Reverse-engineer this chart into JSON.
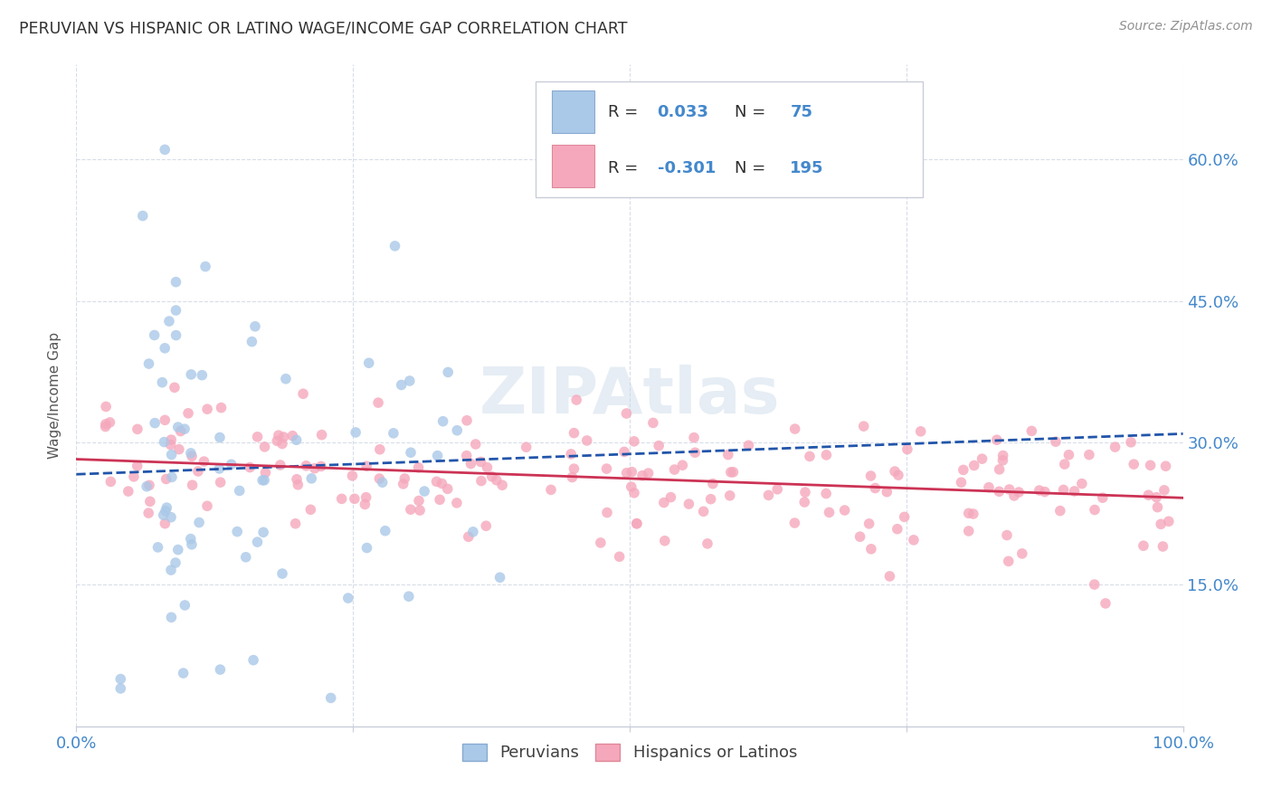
{
  "title": "PERUVIAN VS HISPANIC OR LATINO WAGE/INCOME GAP CORRELATION CHART",
  "source": "Source: ZipAtlas.com",
  "ylabel": "Wage/Income Gap",
  "ytick_labels": [
    "60.0%",
    "45.0%",
    "30.0%",
    "15.0%"
  ],
  "ytick_values": [
    0.6,
    0.45,
    0.3,
    0.15
  ],
  "xlim": [
    0.0,
    1.0
  ],
  "ylim": [
    0.0,
    0.7
  ],
  "watermark": "ZIPAtlas",
  "legend_blue_R": "0.033",
  "legend_blue_N": "75",
  "legend_pink_R": "-0.301",
  "legend_pink_N": "195",
  "legend_items": [
    "Peruvians",
    "Hispanics or Latinos"
  ],
  "blue_color": "#aac8e8",
  "pink_color": "#f5a8bc",
  "blue_line_color": "#2255aa",
  "pink_line_color": "#cc3355",
  "title_color": "#303030",
  "source_color": "#909090",
  "axis_label_color": "#4488cc",
  "legend_text_dark": "#303030",
  "legend_text_blue": "#4488cc",
  "grid_color": "#d8dde8",
  "bottom_border_color": "#c8cdd8"
}
